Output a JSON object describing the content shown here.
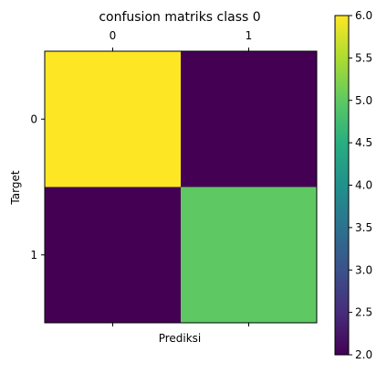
{
  "chart_data": {
    "type": "heatmap",
    "title": "confusion matriks class 0",
    "xlabel": "Prediksi",
    "ylabel": "Target",
    "x_categories": [
      "0",
      "1"
    ],
    "y_categories": [
      "0",
      "1"
    ],
    "values": [
      [
        6,
        2
      ],
      [
        2,
        5
      ]
    ],
    "colormap": "viridis",
    "colorbar": {
      "min": 2.0,
      "max": 6.0,
      "ticks": [
        "2.0",
        "2.5",
        "3.0",
        "3.5",
        "4.0",
        "4.5",
        "5.0",
        "5.5",
        "6.0"
      ]
    },
    "x_ticks_position": "top",
    "grid": false
  }
}
